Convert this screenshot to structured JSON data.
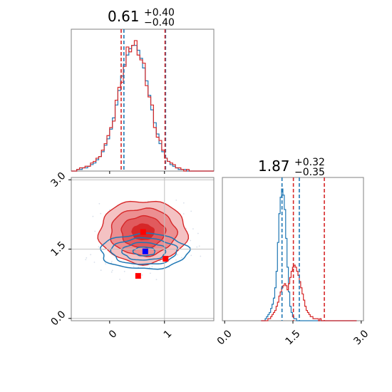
{
  "chart_data": {
    "type": "corner",
    "colors": {
      "blue": "#1f77b4",
      "red": "#d62728",
      "grid": "#bfbfbf",
      "spine": "#808080"
    },
    "panels": [
      {
        "name": "marginal-param-1",
        "type": "step-histogram",
        "title": {
          "main": "0.61",
          "sup": "+0.40",
          "sub": "−0.40"
        },
        "xlim": [
          -0.7,
          1.9
        ],
        "bins": {
          "start": -0.7,
          "width": 0.05
        },
        "series": [
          {
            "color": "#1f77b4",
            "values": [
              0,
              0,
              1,
              1,
              2,
              2,
              3,
              4,
              5,
              7,
              9,
              12,
              16,
              20,
              26,
              33,
              41,
              50,
              59,
              66,
              72,
              76,
              78,
              78,
              75,
              70,
              64,
              56,
              47,
              38,
              30,
              23,
              17,
              12,
              8,
              6,
              4,
              3,
              2,
              1,
              1,
              1,
              0,
              0,
              0,
              0,
              0,
              0,
              0,
              0,
              0,
              0
            ],
            "quantiles": [
              0.26,
              1.02
            ]
          },
          {
            "color": "#d62728",
            "values": [
              0,
              0,
              1,
              2,
              2,
              3,
              3,
              5,
              6,
              8,
              9,
              13,
              17,
              22,
              27,
              31,
              44,
              52,
              55,
              65,
              77,
              74,
              78,
              81,
              72,
              69,
              67,
              53,
              46,
              41,
              27,
              21,
              19,
              13,
              8,
              6,
              5,
              4,
              2,
              2,
              1,
              0,
              1,
              0,
              0,
              0,
              0,
              0,
              0,
              0,
              0,
              0
            ],
            "quantiles": [
              0.21,
              1.01
            ]
          }
        ]
      },
      {
        "name": "marginal-param-2",
        "type": "step-histogram",
        "title": {
          "main": "1.87",
          "sup": "+0.32",
          "sub": "−0.35"
        },
        "xlim": [
          -0.05,
          3.05
        ],
        "xticks": [
          "0.0",
          "1.5",
          "3.0"
        ],
        "xtick_values": [
          0.0,
          1.5,
          3.0
        ],
        "bins": {
          "start": 0.8,
          "width": 0.03
        },
        "series": [
          {
            "color": "#1f77b4",
            "values": [
              0,
              0,
              0,
              1,
              2,
              3,
              4,
              6,
              8,
              11,
              16,
              24,
              38,
              52,
              60,
              64,
              61,
              54,
              40,
              26,
              14,
              7,
              4,
              2,
              1,
              1,
              0,
              0,
              0,
              0,
              0,
              0,
              0,
              0,
              0,
              0,
              0,
              0,
              0,
              0,
              0,
              0,
              0,
              0,
              0,
              0,
              0,
              0,
              0,
              0,
              0,
              0,
              0,
              0,
              0,
              0,
              0,
              0,
              0,
              0,
              0,
              0,
              0,
              0,
              0,
              0,
              0,
              0,
              0,
              0
            ],
            "quantiles": [
              1.26,
              1.64
            ]
          },
          {
            "color": "#d62728",
            "values": [
              0,
              0,
              0,
              0,
              0,
              1,
              1,
              2,
              3,
              4,
              5,
              7,
              9,
              12,
              14,
              16,
              17,
              18,
              17,
              15,
              18,
              21,
              24,
              26,
              27,
              26,
              24,
              22,
              19,
              16,
              13,
              10,
              7,
              5,
              4,
              3,
              2,
              2,
              1,
              1,
              1,
              1,
              0,
              1,
              0,
              0,
              0,
              0,
              0,
              0,
              0,
              0,
              0,
              0,
              0,
              0,
              0,
              0,
              0,
              0,
              0,
              0,
              0,
              0,
              0,
              0,
              0,
              0,
              0,
              0
            ],
            "quantiles": [
              1.51,
              2.19
            ]
          }
        ]
      },
      {
        "name": "joint-param-1-param-2",
        "type": "contour",
        "xlim": [
          -0.7,
          1.9
        ],
        "ylim": [
          -0.05,
          3.05
        ],
        "xticks": [
          "0",
          "1"
        ],
        "xtick_values": [
          0,
          1
        ],
        "yticks": [
          "0.0",
          "1.5",
          "3.0"
        ],
        "ytick_values": [
          0.0,
          1.5,
          3.0
        ],
        "crosshair": {
          "x": 1.0,
          "y": 1.5
        },
        "series": [
          {
            "color": "#1f77b4",
            "center": [
              0.63,
              1.45
            ],
            "sigma": [
              0.4,
              0.19
            ]
          },
          {
            "color": "#d62728",
            "center": [
              0.61,
              1.87
            ],
            "sigma": [
              0.4,
              0.34
            ]
          }
        ],
        "markers": [
          {
            "color": "#0000ff",
            "x": 0.65,
            "y": 1.45
          },
          {
            "color": "#ff0000",
            "x": 0.61,
            "y": 1.87
          },
          {
            "color": "#ff0000",
            "x": 1.02,
            "y": 1.29
          },
          {
            "color": "#ff0000",
            "x": 0.52,
            "y": 0.92
          }
        ]
      }
    ]
  }
}
